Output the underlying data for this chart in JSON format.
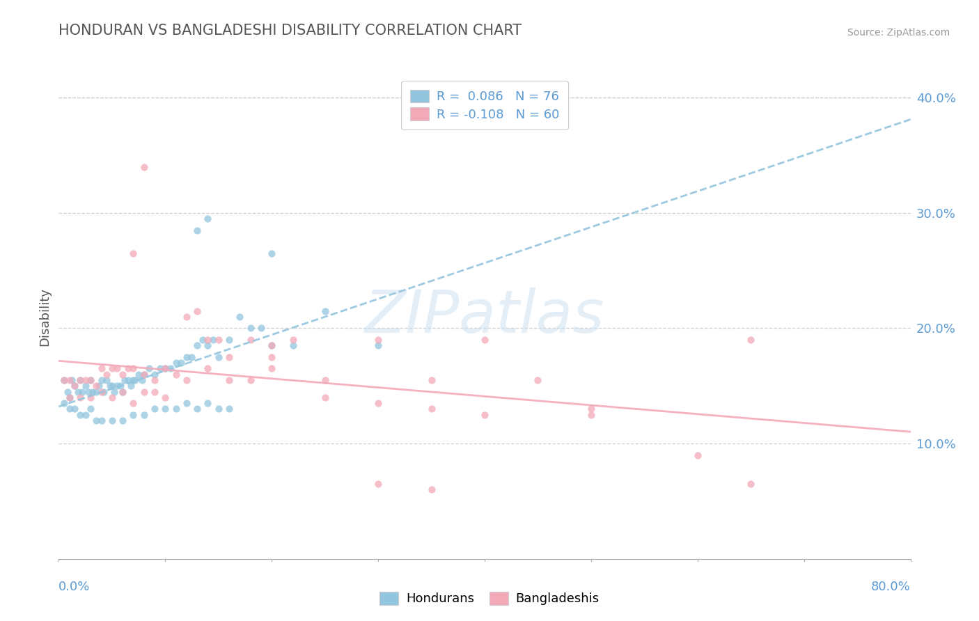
{
  "title": "HONDURAN VS BANGLADESHI DISABILITY CORRELATION CHART",
  "source": "Source: ZipAtlas.com",
  "ylabel": "Disability",
  "xlim": [
    0.0,
    0.8
  ],
  "ylim": [
    0.0,
    0.42
  ],
  "yticks": [
    0.1,
    0.2,
    0.3,
    0.4
  ],
  "ytick_labels": [
    "10.0%",
    "20.0%",
    "30.0%",
    "40.0%"
  ],
  "blue_color": "#92c5de",
  "pink_color": "#f4a9b8",
  "blue_R": 0.086,
  "pink_R": -0.108,
  "blue_N": 76,
  "pink_N": 60,
  "watermark": "ZIPatlas",
  "background_color": "#ffffff",
  "grid_color": "#d0d0d0",
  "title_color": "#555555",
  "tick_label_color": "#5b9bd5",
  "blue_scatter_x": [
    0.005,
    0.008,
    0.01,
    0.012,
    0.015,
    0.018,
    0.02,
    0.022,
    0.025,
    0.028,
    0.03,
    0.032,
    0.035,
    0.038,
    0.04,
    0.042,
    0.045,
    0.048,
    0.05,
    0.052,
    0.055,
    0.058,
    0.06,
    0.062,
    0.065,
    0.068,
    0.07,
    0.072,
    0.075,
    0.078,
    0.08,
    0.085,
    0.09,
    0.095,
    0.1,
    0.105,
    0.11,
    0.115,
    0.12,
    0.125,
    0.13,
    0.135,
    0.14,
    0.145,
    0.15,
    0.16,
    0.17,
    0.18,
    0.19,
    0.2,
    0.005,
    0.01,
    0.015,
    0.02,
    0.025,
    0.03,
    0.035,
    0.04,
    0.05,
    0.06,
    0.07,
    0.08,
    0.09,
    0.1,
    0.11,
    0.12,
    0.13,
    0.14,
    0.15,
    0.16,
    0.13,
    0.14,
    0.2,
    0.25,
    0.3,
    0.22
  ],
  "blue_scatter_y": [
    0.155,
    0.145,
    0.14,
    0.155,
    0.15,
    0.145,
    0.155,
    0.145,
    0.15,
    0.145,
    0.155,
    0.145,
    0.145,
    0.15,
    0.155,
    0.145,
    0.155,
    0.15,
    0.15,
    0.145,
    0.15,
    0.15,
    0.145,
    0.155,
    0.155,
    0.15,
    0.155,
    0.155,
    0.16,
    0.155,
    0.16,
    0.165,
    0.16,
    0.165,
    0.165,
    0.165,
    0.17,
    0.17,
    0.175,
    0.175,
    0.185,
    0.19,
    0.185,
    0.19,
    0.175,
    0.19,
    0.21,
    0.2,
    0.2,
    0.185,
    0.135,
    0.13,
    0.13,
    0.125,
    0.125,
    0.13,
    0.12,
    0.12,
    0.12,
    0.12,
    0.125,
    0.125,
    0.13,
    0.13,
    0.13,
    0.135,
    0.13,
    0.135,
    0.13,
    0.13,
    0.285,
    0.295,
    0.265,
    0.215,
    0.185,
    0.185
  ],
  "pink_scatter_x": [
    0.005,
    0.01,
    0.015,
    0.02,
    0.025,
    0.03,
    0.035,
    0.04,
    0.045,
    0.05,
    0.055,
    0.06,
    0.065,
    0.07,
    0.08,
    0.09,
    0.1,
    0.11,
    0.12,
    0.13,
    0.14,
    0.15,
    0.16,
    0.2,
    0.25,
    0.3,
    0.35,
    0.4,
    0.01,
    0.02,
    0.03,
    0.04,
    0.05,
    0.06,
    0.07,
    0.08,
    0.09,
    0.1,
    0.12,
    0.14,
    0.16,
    0.18,
    0.2,
    0.25,
    0.3,
    0.35,
    0.4,
    0.5,
    0.6,
    0.65,
    0.18,
    0.22,
    0.5,
    0.65,
    0.2,
    0.45,
    0.3,
    0.35,
    0.07,
    0.08
  ],
  "pink_scatter_y": [
    0.155,
    0.155,
    0.15,
    0.155,
    0.155,
    0.155,
    0.15,
    0.165,
    0.16,
    0.165,
    0.165,
    0.16,
    0.165,
    0.165,
    0.16,
    0.155,
    0.165,
    0.16,
    0.21,
    0.215,
    0.19,
    0.19,
    0.175,
    0.175,
    0.155,
    0.19,
    0.155,
    0.19,
    0.14,
    0.14,
    0.14,
    0.145,
    0.14,
    0.145,
    0.135,
    0.145,
    0.145,
    0.14,
    0.155,
    0.165,
    0.155,
    0.155,
    0.165,
    0.14,
    0.135,
    0.13,
    0.125,
    0.13,
    0.09,
    0.065,
    0.19,
    0.19,
    0.125,
    0.19,
    0.185,
    0.155,
    0.065,
    0.06,
    0.265,
    0.34
  ]
}
